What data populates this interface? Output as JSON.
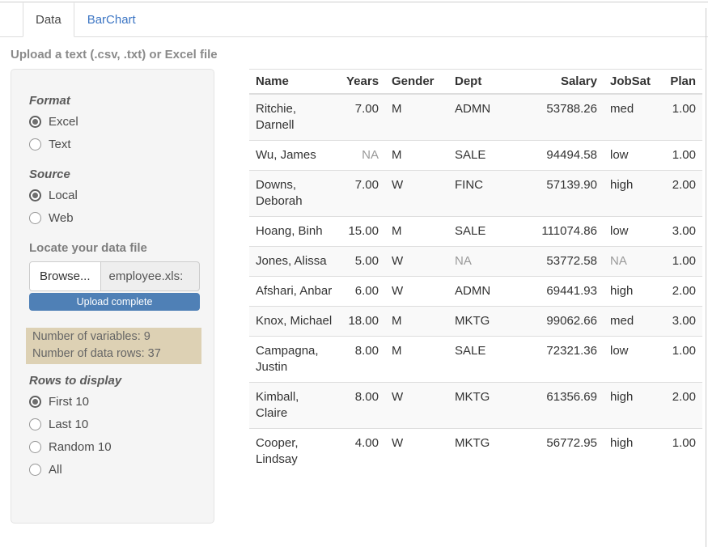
{
  "tabs": [
    {
      "label": "Data",
      "active": true
    },
    {
      "label": "BarChart",
      "active": false
    }
  ],
  "page_heading": "Upload a text (.csv, .txt) or Excel file",
  "sidebar": {
    "format": {
      "label": "Format",
      "options": [
        {
          "label": "Excel",
          "selected": true
        },
        {
          "label": "Text",
          "selected": false
        }
      ]
    },
    "source": {
      "label": "Source",
      "options": [
        {
          "label": "Local",
          "selected": true
        },
        {
          "label": "Web",
          "selected": false
        }
      ]
    },
    "file": {
      "label": "Locate your data file",
      "browse_label": "Browse...",
      "filename": "employee.xls:",
      "progress_label": "Upload complete"
    },
    "summary": {
      "lines": [
        "Number of variables: 9",
        "Number of data rows: 37"
      ]
    },
    "rows_to_display": {
      "label": "Rows to display",
      "options": [
        {
          "label": "First 10",
          "selected": true
        },
        {
          "label": "Last 10",
          "selected": false
        },
        {
          "label": "Random 10",
          "selected": false
        },
        {
          "label": "All",
          "selected": false
        }
      ]
    }
  },
  "table": {
    "columns": [
      {
        "label": "Name",
        "align": "left"
      },
      {
        "label": "Years",
        "align": "right"
      },
      {
        "label": "Gender",
        "align": "left"
      },
      {
        "label": "Dept",
        "align": "left"
      },
      {
        "label": "Salary",
        "align": "right"
      },
      {
        "label": "JobSat",
        "align": "left"
      },
      {
        "label": "Plan",
        "align": "right"
      }
    ],
    "rows": [
      [
        "Ritchie, Darnell",
        "7.00",
        "M",
        "ADMN",
        "53788.26",
        "med",
        "1.00"
      ],
      [
        "Wu, James",
        "NA",
        "M",
        "SALE",
        "94494.58",
        "low",
        "1.00"
      ],
      [
        "Downs, Deborah",
        "7.00",
        "W",
        "FINC",
        "57139.90",
        "high",
        "2.00"
      ],
      [
        "Hoang, Binh",
        "15.00",
        "M",
        "SALE",
        "111074.86",
        "low",
        "3.00"
      ],
      [
        "Jones, Alissa",
        "5.00",
        "W",
        "NA",
        "53772.58",
        "NA",
        "1.00"
      ],
      [
        "Afshari, Anbar",
        "6.00",
        "W",
        "ADMN",
        "69441.93",
        "high",
        "2.00"
      ],
      [
        "Knox, Michael",
        "18.00",
        "M",
        "MKTG",
        "99062.66",
        "med",
        "3.00"
      ],
      [
        "Campagna, Justin",
        "8.00",
        "M",
        "SALE",
        "72321.36",
        "low",
        "1.00"
      ],
      [
        "Kimball, Claire",
        "8.00",
        "W",
        "MKTG",
        "61356.69",
        "high",
        "2.00"
      ],
      [
        "Cooper, Lindsay",
        "4.00",
        "W",
        "MKTG",
        "56772.95",
        "high",
        "1.00"
      ]
    ],
    "na_display": "NA"
  },
  "colors": {
    "link_blue": "#3d76c4",
    "progress_blue": "#4f80b6",
    "summary_tan": "#ddd1b4",
    "well_gray": "#f5f5f5",
    "stripe_gray": "#f9f9f9",
    "na_gray": "#999999"
  }
}
